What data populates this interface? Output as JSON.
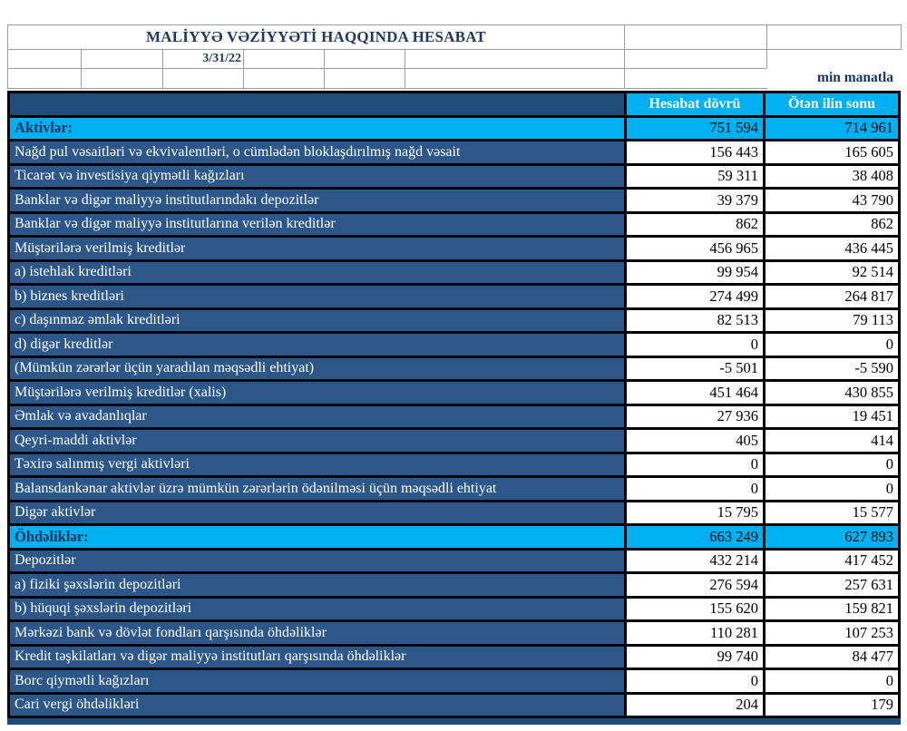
{
  "header": {
    "title": "MALİYYƏ VƏZİYYƏTİ HAQQINDA HESABAT",
    "date": "3/31/22",
    "unit_note": "min manatla"
  },
  "table": {
    "columns": [
      "Hesabat dövrü",
      "Ötən ilin sonu"
    ],
    "rows": [
      {
        "label": "Aktivlər:",
        "current": "751 594",
        "previous": "714 961",
        "type": "section"
      },
      {
        "label": "Nağd pul vəsaitləri və  ekvivalentləri, o cümlədən bloklaşdırılmış nağd vəsait",
        "current": "156 443",
        "previous": "165 605",
        "type": "data"
      },
      {
        "label": "Ticarət və investisiya qiymətli kağızları",
        "current": "59 311",
        "previous": "38 408",
        "type": "data"
      },
      {
        "label": "Banklar və digər maliyyə institutlarındakı depozitlər",
        "current": "39 379",
        "previous": "43 790",
        "type": "data"
      },
      {
        "label": "Banklar və digər maliyyə institutlarına verilən kreditlər",
        "current": "862",
        "previous": "862",
        "type": "data"
      },
      {
        "label": "Müştərilərə verilmiş kreditlər",
        "current": "456 965",
        "previous": "436 445",
        "type": "data"
      },
      {
        "label": "a) istehlak kreditləri",
        "current": "99 954",
        "previous": "92 514",
        "type": "data"
      },
      {
        "label": "b) biznes kreditləri",
        "current": "274 499",
        "previous": "264 817",
        "type": "data"
      },
      {
        "label": "c) daşınmaz əmlak kreditləri",
        "current": "82 513",
        "previous": "79 113",
        "type": "data"
      },
      {
        "label": "d) digər kreditlər",
        "current": "0",
        "previous": "0",
        "type": "data"
      },
      {
        "label": "(Mümkün zərərlər üçün yaradılan məqsədli ehtiyat)",
        "current": "-5 501",
        "previous": "-5 590",
        "type": "data"
      },
      {
        "label": "Müştərilərə verilmiş kreditlər (xalis)",
        "current": "451 464",
        "previous": "430 855",
        "type": "data"
      },
      {
        "label": "Əmlak və avadanlıqlar",
        "current": "27 936",
        "previous": "19 451",
        "type": "data"
      },
      {
        "label": "Qeyri-maddi aktivlər",
        "current": "405",
        "previous": "414",
        "type": "data"
      },
      {
        "label": "Təxirə salınmış vergi aktivləri",
        "current": "0",
        "previous": "0",
        "type": "data"
      },
      {
        "label": "Balansdankənar aktivlər üzrə mümkün zərərlərin ödənilməsi üçün məqsədli ehtiyat",
        "current": "0",
        "previous": "0",
        "type": "data"
      },
      {
        "label": "Digər aktivlər",
        "current": "15 795",
        "previous": "15 577",
        "type": "data"
      },
      {
        "label": "Öhdəliklər:",
        "current": "663 249",
        "previous": "627 893",
        "type": "section"
      },
      {
        "label": "Depozitlər",
        "current": "432 214",
        "previous": "417 452",
        "type": "data"
      },
      {
        "label": "a) fiziki şəxslərin depozitləri",
        "current": "276 594",
        "previous": "257 631",
        "type": "data"
      },
      {
        "label": "b) hüquqi şəxslərin depozitləri",
        "current": "155 620",
        "previous": "159 821",
        "type": "data"
      },
      {
        "label": "Mərkəzi bank və dövlət fondları qarşısında öhdəliklər",
        "current": "110 281",
        "previous": "107 253",
        "type": "data"
      },
      {
        "label": "Kredit təşkilatları və digər maliyyə institutları qarşısında öhdəliklər",
        "current": "99 740",
        "previous": "84 477",
        "type": "data"
      },
      {
        "label": "Borc qiymətli kağızları",
        "current": "0",
        "previous": "0",
        "type": "data"
      },
      {
        "label": "Cari vergi öhdəlikləri",
        "current": "204",
        "previous": "179",
        "type": "data"
      }
    ]
  },
  "colors": {
    "section_bg": "#00b0f0",
    "row_label_bg": "#2c5788",
    "header_bar_bg": "#1f4c78",
    "grid_border": "#000000",
    "title_text": "#1f3864"
  }
}
